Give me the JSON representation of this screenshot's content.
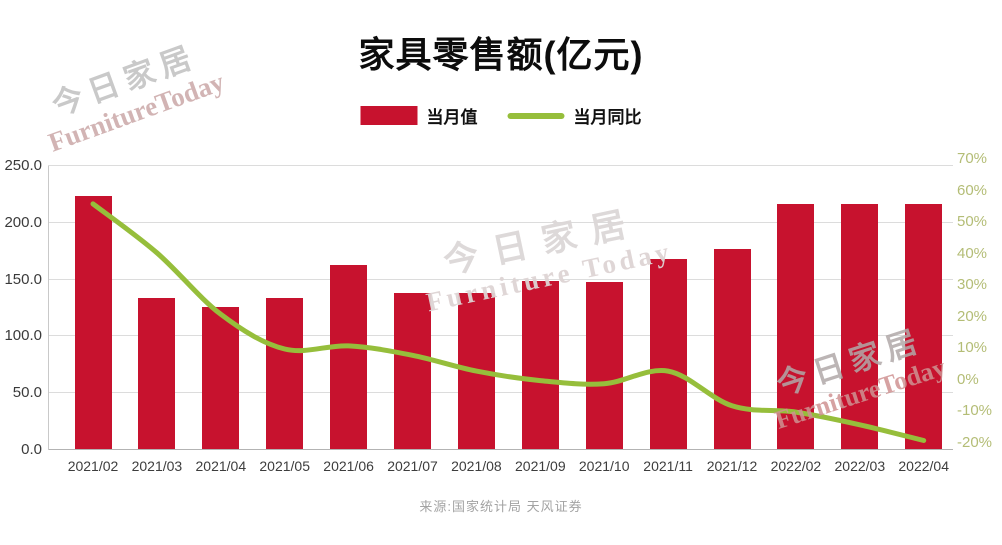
{
  "header": {
    "title": "家具零售额(亿元)"
  },
  "legend": {
    "items": [
      {
        "label": "当月值",
        "swatch": "bar",
        "color": "#C7122E"
      },
      {
        "label": "当月同比",
        "swatch": "line",
        "color": "#96BE3B"
      }
    ]
  },
  "footer": {
    "source": "来源:国家统计局 天风证券"
  },
  "watermarks": [
    {
      "position": "top-left",
      "line1": "今日家居",
      "line2": "FurnitureToday"
    },
    {
      "position": "center",
      "line1": "今日家居",
      "line2": "Furniture Today"
    },
    {
      "position": "bottom-right",
      "line1": "今日家居",
      "line2": "FurnitureToday"
    }
  ],
  "chart_data": {
    "type": "combo-bar-line",
    "title": "家具零售额(亿元)",
    "categories": [
      "2021/02",
      "2021/03",
      "2021/04",
      "2021/05",
      "2021/06",
      "2021/07",
      "2021/08",
      "2021/09",
      "2021/10",
      "2021/11",
      "2021/12",
      "2022/02",
      "2022/03",
      "2022/04"
    ],
    "series": [
      {
        "name": "当月值",
        "type": "bar",
        "axis": "left",
        "unit": "亿元",
        "color": "#C7122E",
        "values": [
          223,
          133,
          125,
          133,
          162,
          137,
          137,
          148,
          147,
          167,
          176,
          216,
          216,
          216
        ]
      },
      {
        "name": "当月同比",
        "type": "line",
        "axis": "right",
        "unit": "%",
        "color": "#96BE3B",
        "values": [
          58,
          42.5,
          23,
          12,
          13,
          10,
          5,
          2,
          1,
          5,
          -6,
          -8,
          -12,
          -17
        ]
      }
    ],
    "left_axis": {
      "min": 0,
      "max": 250,
      "step": 50,
      "ticks": [
        "0.0",
        "50.0",
        "100.0",
        "150.0",
        "200.0",
        "250.0"
      ]
    },
    "right_axis": {
      "min": -20,
      "max": 70,
      "step": 10,
      "ticks": [
        "-20%",
        "-10%",
        "0%",
        "10%",
        "20%",
        "30%",
        "40%",
        "50%",
        "60%",
        "70%"
      ]
    },
    "grid": true,
    "legend_position": "top",
    "colors": {
      "bar": "#C7122E",
      "line": "#96BE3B",
      "grid": "#dcdcdc",
      "axis_text": "#3a3a3a",
      "right_axis_text": "#b4bd76"
    }
  }
}
